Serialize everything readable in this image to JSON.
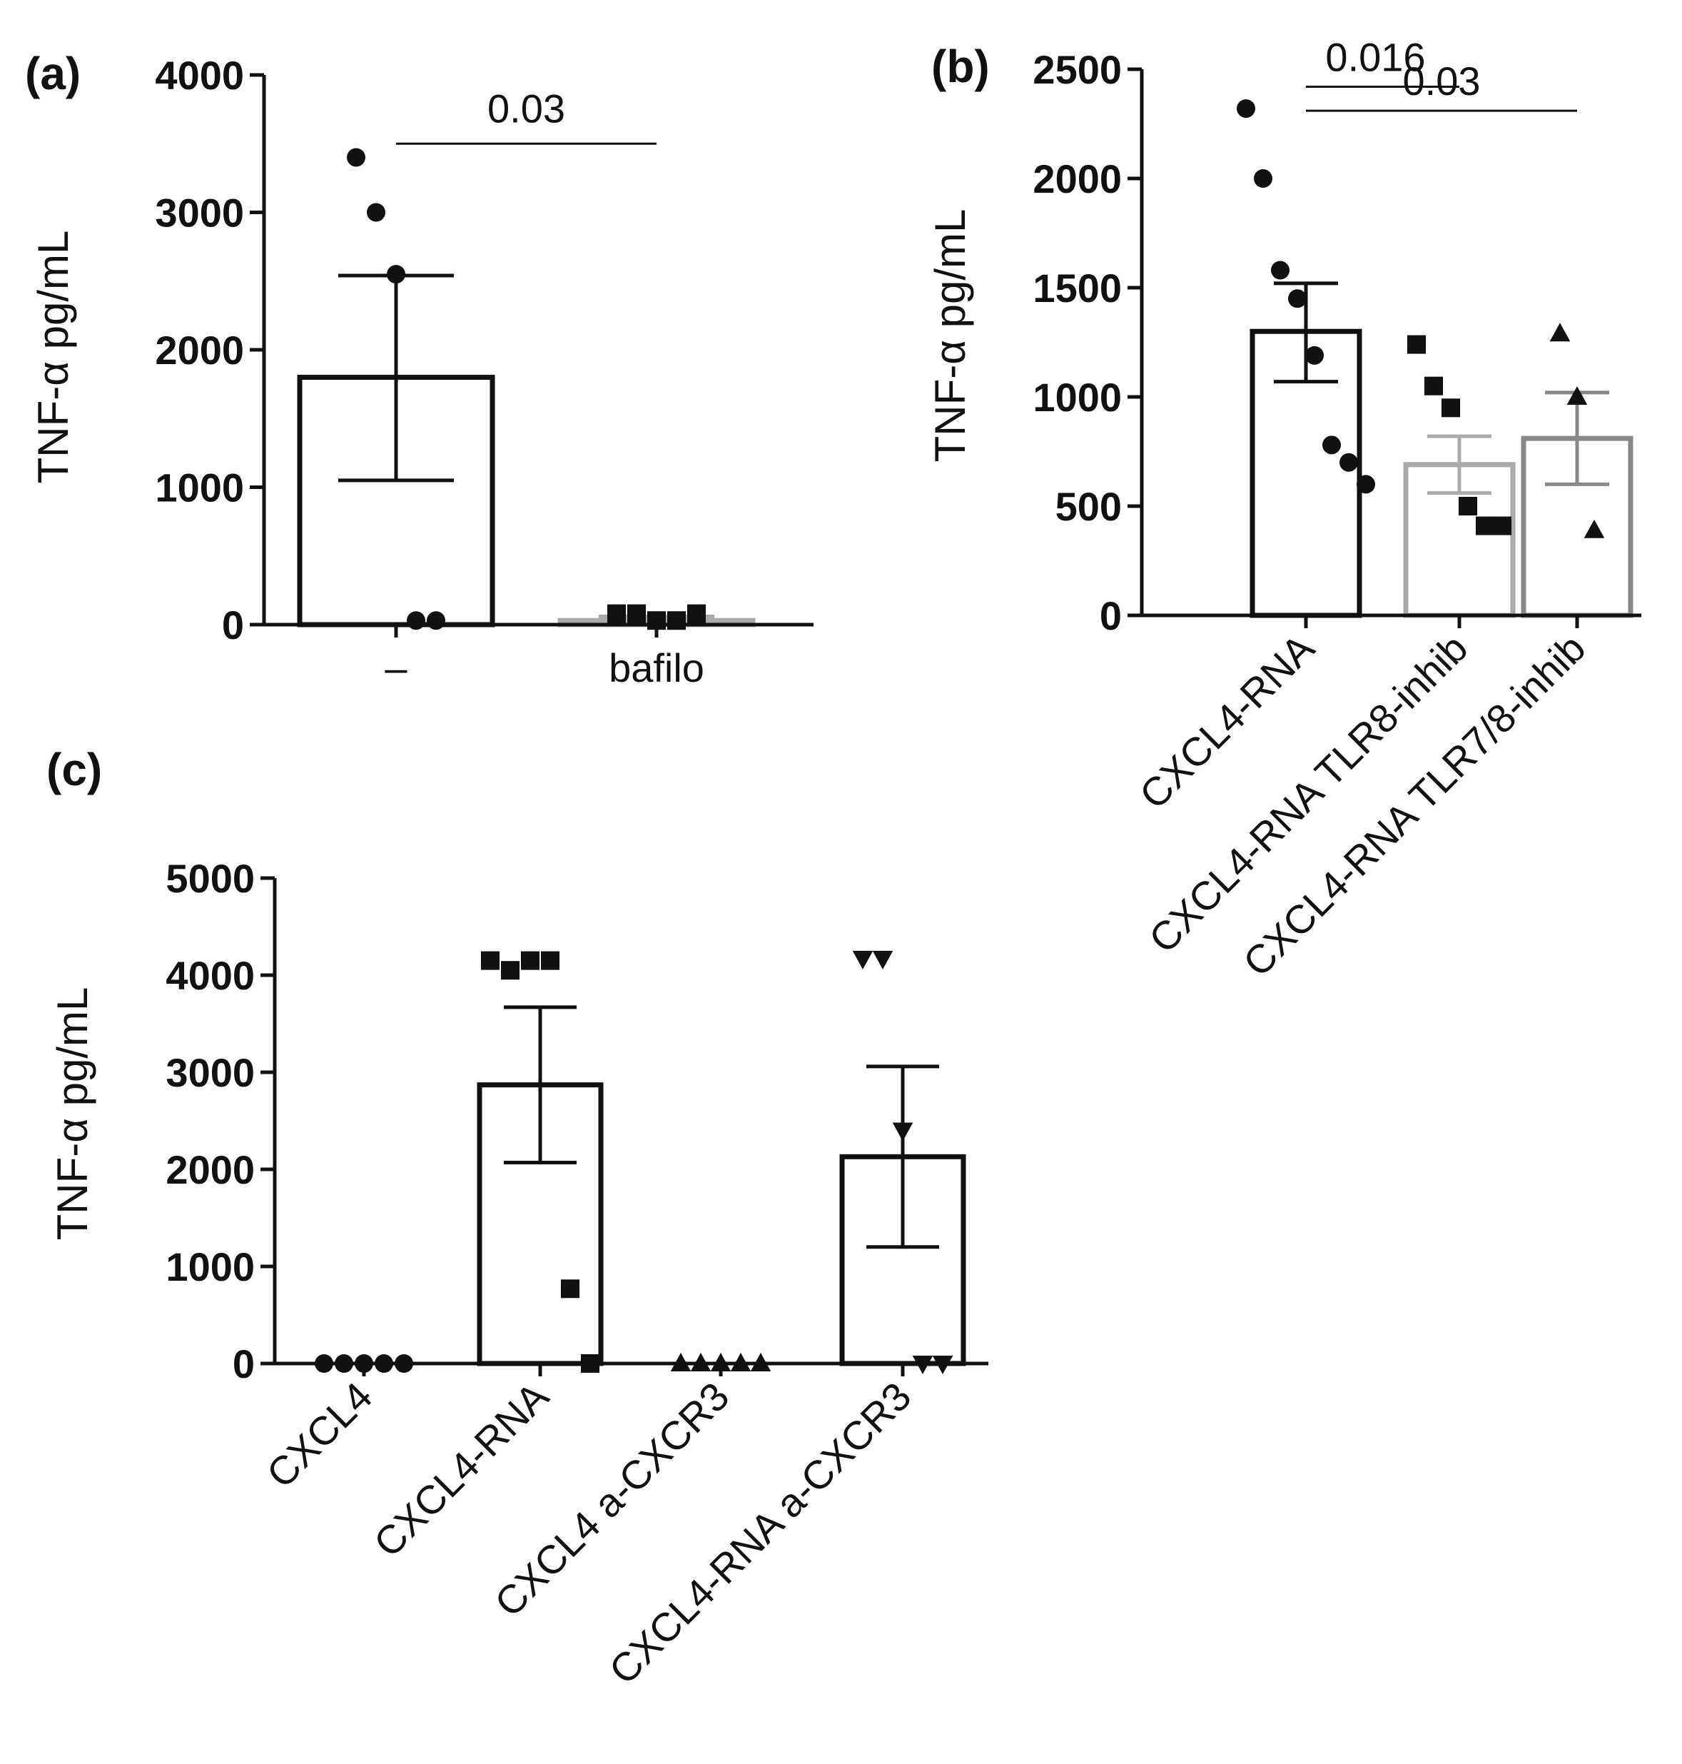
{
  "chart_data": [
    {
      "type": "bar",
      "panel": "(a)",
      "ylabel": "TNF-α pg/mL",
      "ylim": [
        0,
        4000
      ],
      "yticks": [
        0,
        1000,
        2000,
        3000,
        4000
      ],
      "categories": [
        "–",
        "bafilo"
      ],
      "series": [
        {
          "name": "mean",
          "values": [
            1800,
            30
          ]
        }
      ],
      "errors": [
        [
          1050,
          2540
        ],
        [
          0,
          60
        ]
      ],
      "points": [
        [
          3400,
          3000,
          2550,
          30,
          30
        ],
        [
          80,
          80,
          30,
          30,
          80
        ]
      ],
      "marker": [
        "circle",
        "square"
      ],
      "bar_color": [
        "#111111",
        "#aaaaaa"
      ],
      "significance": [
        {
          "from": 0,
          "to": 1,
          "label": "0.03",
          "y": 3500
        }
      ]
    },
    {
      "type": "bar",
      "panel": "(b)",
      "ylabel": "TNF-α pg/mL",
      "ylim": [
        0,
        2500
      ],
      "yticks": [
        0,
        500,
        1000,
        1500,
        2000,
        2500
      ],
      "categories": [
        "CXCL4-RNA",
        "CXCL4-RNA TLR8-inhib",
        "CXCL4-RNA TLR7/8-inhib"
      ],
      "series": [
        {
          "name": "mean",
          "values": [
            1300,
            690,
            810
          ]
        }
      ],
      "errors": [
        [
          1070,
          1520
        ],
        [
          560,
          820
        ],
        [
          600,
          1020
        ]
      ],
      "points": [
        [
          2320,
          2000,
          1580,
          1450,
          1190,
          780,
          700,
          600
        ],
        [
          1240,
          1050,
          950,
          500,
          410,
          410
        ],
        [
          1290,
          1000,
          390
        ]
      ],
      "marker": [
        "circle",
        "square",
        "triangle-up"
      ],
      "bar_color": [
        "#111111",
        "#aaaaaa",
        "#888888"
      ],
      "significance": [
        {
          "from": 0,
          "to": 1,
          "label": "0.016",
          "y": 2420
        },
        {
          "from": 0,
          "to": 2,
          "label": "0.03",
          "y": 2310
        }
      ]
    },
    {
      "type": "bar",
      "panel": "(c)",
      "ylabel": "TNF-α pg/mL",
      "ylim": [
        0,
        5000
      ],
      "yticks": [
        0,
        1000,
        2000,
        3000,
        4000,
        5000
      ],
      "categories": [
        "CXCL4",
        "CXCL4-RNA",
        "CXCL4 a-CXCR3",
        "CXCL4-RNA a-CXCR3"
      ],
      "series": [
        {
          "name": "mean",
          "values": [
            0,
            2870,
            0,
            2130
          ]
        }
      ],
      "errors": [
        [
          0,
          0
        ],
        [
          2070,
          3670
        ],
        [
          0,
          0
        ],
        [
          1200,
          3060
        ]
      ],
      "points": [
        [
          0,
          0,
          0,
          0,
          0
        ],
        [
          4150,
          4050,
          4150,
          4150,
          770,
          0
        ],
        [
          0,
          0,
          0,
          0,
          0
        ],
        [
          4170,
          4170,
          2400,
          0,
          0
        ]
      ],
      "marker": [
        "circle",
        "square",
        "triangle-up",
        "triangle-down"
      ],
      "bar_color": [
        "#111111",
        "#111111",
        "#111111",
        "#111111"
      ],
      "significance": []
    }
  ]
}
